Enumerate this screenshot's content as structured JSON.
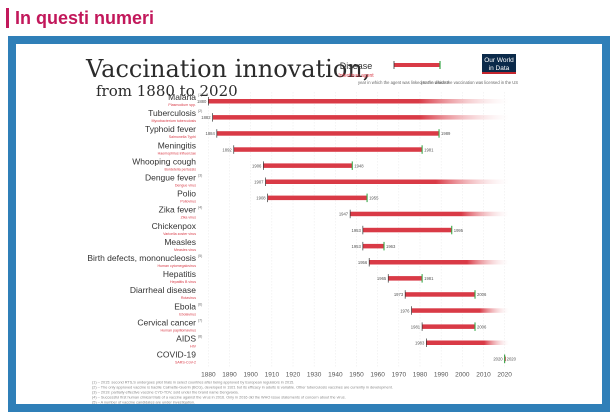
{
  "header": {
    "title": "In questi numeri"
  },
  "colors": {
    "accent": "#c2185b",
    "frame": "#2f7fb8",
    "bar": "#d93a46",
    "bar_fade": "#e8a0a6",
    "green": "#3aa84a",
    "owid_bg": "#0b2a4a",
    "owid_red": "#c4262e"
  },
  "branding": {
    "logo_line1": "Our World",
    "logo_line2": "in Data",
    "footer_site": "OurWorldinData.org",
    "footer_tagline": " – Research and data to make progress against the world's largest problems.",
    "license": "Licensed under CC-BY by the author Max Roser"
  },
  "legend": {
    "disease": "Disease",
    "agent": "Infectious agent",
    "left_note": "year in which the agent was linked to the disease",
    "right_note": "year in which the vaccination was licensed in the US"
  },
  "chart_data": {
    "type": "range",
    "title": "Vaccination innovation,",
    "subtitle": "from 1880 to 2020",
    "xlim": [
      1877,
      2023
    ],
    "x_ticks": [
      1880,
      1890,
      1900,
      1910,
      1920,
      1930,
      1940,
      1950,
      1960,
      1970,
      1980,
      1990,
      2000,
      2010,
      2020
    ],
    "series": [
      {
        "disease": "Malaria",
        "sup": "(1)",
        "agent": "Plasmodium spp.",
        "start": 1880,
        "end": null
      },
      {
        "disease": "Tuberculosis",
        "sup": "(2)",
        "agent": "Mycobacterium tuberculosis",
        "start": 1882,
        "end": null
      },
      {
        "disease": "Typhoid fever",
        "sup": "",
        "agent": "Salmonella Typhi",
        "start": 1884,
        "end": 1989
      },
      {
        "disease": "Meningitis",
        "sup": "",
        "agent": "Haemophilus influenzae",
        "start": 1892,
        "end": 1981
      },
      {
        "disease": "Whooping cough",
        "sup": "",
        "agent": "Bordetella pertussis",
        "start": 1906,
        "end": 1948
      },
      {
        "disease": "Dengue fever",
        "sup": "(3)",
        "agent": "Dengue virus",
        "start": 1907,
        "end": null
      },
      {
        "disease": "Polio",
        "sup": "",
        "agent": "Poliovirus",
        "start": 1908,
        "end": 1955
      },
      {
        "disease": "Zika fever",
        "sup": "(4)",
        "agent": "Zika virus",
        "start": 1947,
        "end": null
      },
      {
        "disease": "Chickenpox",
        "sup": "",
        "agent": "Varicella zoster virus",
        "start": 1953,
        "end": 1995
      },
      {
        "disease": "Measles",
        "sup": "",
        "agent": "Measles virus",
        "start": 1953,
        "end": 1963
      },
      {
        "disease": "Birth defects, mononucleosis",
        "sup": "(5)",
        "agent": "Human cytomegalovirus",
        "start": 1956,
        "end": null
      },
      {
        "disease": "Hepatitis",
        "sup": "",
        "agent": "Hepatitis B virus",
        "start": 1965,
        "end": 1981
      },
      {
        "disease": "Diarrheal disease",
        "sup": "",
        "agent": "Rotavirus",
        "start": 1973,
        "end": 2006
      },
      {
        "disease": "Ebola",
        "sup": "(6)",
        "agent": "Ebolavirus",
        "start": 1976,
        "end": null
      },
      {
        "disease": "Cervical cancer",
        "sup": "(7)",
        "agent": "Human papillomavirus",
        "start": 1981,
        "end": 2006
      },
      {
        "disease": "AIDS",
        "sup": "(8)",
        "agent": "HIV",
        "start": 1983,
        "end": null
      },
      {
        "disease": "COVID-19",
        "sup": "",
        "agent": "SARS-CoV-2",
        "start": 2020,
        "end": 2020
      }
    ],
    "footnotes": [
      "(1) – 2015: second RTS,S undergoes pilot trials in select countries after being approved by European regulators in 2015.",
      "(2) – The only approved vaccine is bacille Calmette-Guérin (BCG), developed in 1921 but its efficacy in adults is variable. Other tuberculosis vaccines are currently in development.",
      "(3) – 2019: partially effective vaccine CYD-TDV, sold under the brand name Dengvaxia.",
      "(4) – Successful first human clinical trials of a vaccine against the virus in 2016. Only in 2016 did the WHO issue statements of concern about the virus.",
      "(5) – A number of vaccine candidates are under investigation.",
      "(6) – 2019: ERVEBO vaccine for human clinical trials and showed full use in emergency through the WHO Emergency Use Assessment and Listing (EUAL).",
      "(7) – First vaccine licensed can be used to prevent the HPV strains that cause cervical cancer caused by the HPV virus.",
      "(8) – 2009 efficacy findings for vaccine candidate RV 144 has shown some promise. No longer in human trials."
    ]
  }
}
